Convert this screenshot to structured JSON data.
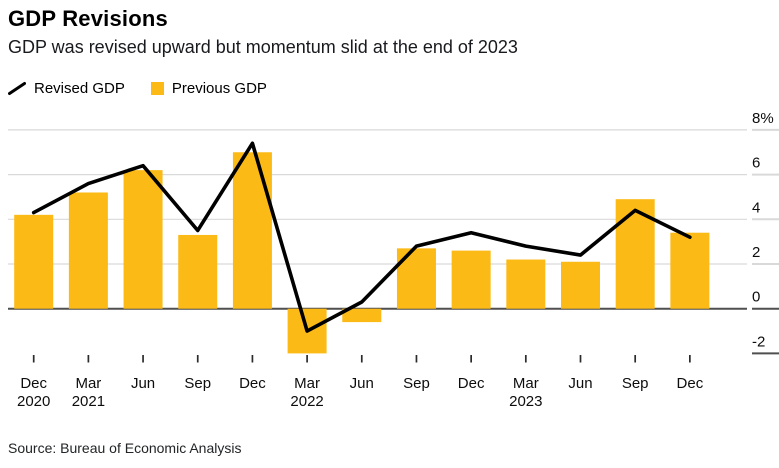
{
  "header": {
    "title": "GDP Revisions",
    "subtitle": "GDP was revised upward but momentum slid at the end of 2023"
  },
  "legend": [
    {
      "label": "Revised GDP",
      "marker": "line-icon",
      "color": "#000000"
    },
    {
      "label": "Previous GDP",
      "marker": "square-icon",
      "color": "#FCBA16"
    }
  ],
  "chart_data": {
    "type": "bar",
    "subtype": "bar-with-line-overlay",
    "title": "GDP Revisions",
    "subtitle": "GDP was revised upward but momentum slid at the end of 2023",
    "unit": "%",
    "categories": [
      "Dec 2020",
      "Mar 2021",
      "Jun 2021",
      "Sep 2021",
      "Dec 2021",
      "Mar 2022",
      "Jun 2022",
      "Sep 2022",
      "Dec 2022",
      "Mar 2023",
      "Jun 2023",
      "Sep 2023",
      "Dec 2023"
    ],
    "x_tick_labels": [
      "Dec",
      "Mar",
      "Jun",
      "Sep",
      "Dec",
      "Mar",
      "Jun",
      "Sep",
      "Dec",
      "Mar",
      "Jun",
      "Sep",
      "Dec"
    ],
    "x_year_labels": {
      "0": "2020",
      "1": "2021",
      "5": "2022",
      "9": "2023"
    },
    "series": [
      {
        "name": "Previous GDP",
        "type": "bar",
        "color": "#FCBA16",
        "values": [
          4.2,
          5.2,
          6.2,
          3.3,
          7.0,
          -2.0,
          -0.6,
          2.7,
          2.6,
          2.2,
          2.1,
          4.9,
          3.4
        ]
      },
      {
        "name": "Revised GDP",
        "type": "line",
        "color": "#000000",
        "values": [
          4.3,
          5.6,
          6.4,
          3.5,
          7.4,
          -1.0,
          0.3,
          2.8,
          3.4,
          2.8,
          2.4,
          4.4,
          3.2
        ]
      }
    ],
    "y_ticks": [
      8,
      6,
      4,
      2,
      0,
      -2
    ],
    "y_tick_labels": [
      "8%",
      "6",
      "4",
      "2",
      "0",
      "-2"
    ],
    "ylim": [
      -2.5,
      8
    ],
    "grid": "horizontal",
    "legend_position": "top-left",
    "y_axis_side": "right"
  },
  "source": {
    "text": "Source: Bureau of Economic Analysis"
  },
  "colors": {
    "bar": "#FCBA16",
    "line": "#000000",
    "gridline": "#D9D9D9",
    "zero_line": "#4F4F4F",
    "tick": "#2B2B2B",
    "axis_text": "#0D0D0D",
    "background": "#FFFFFF"
  }
}
